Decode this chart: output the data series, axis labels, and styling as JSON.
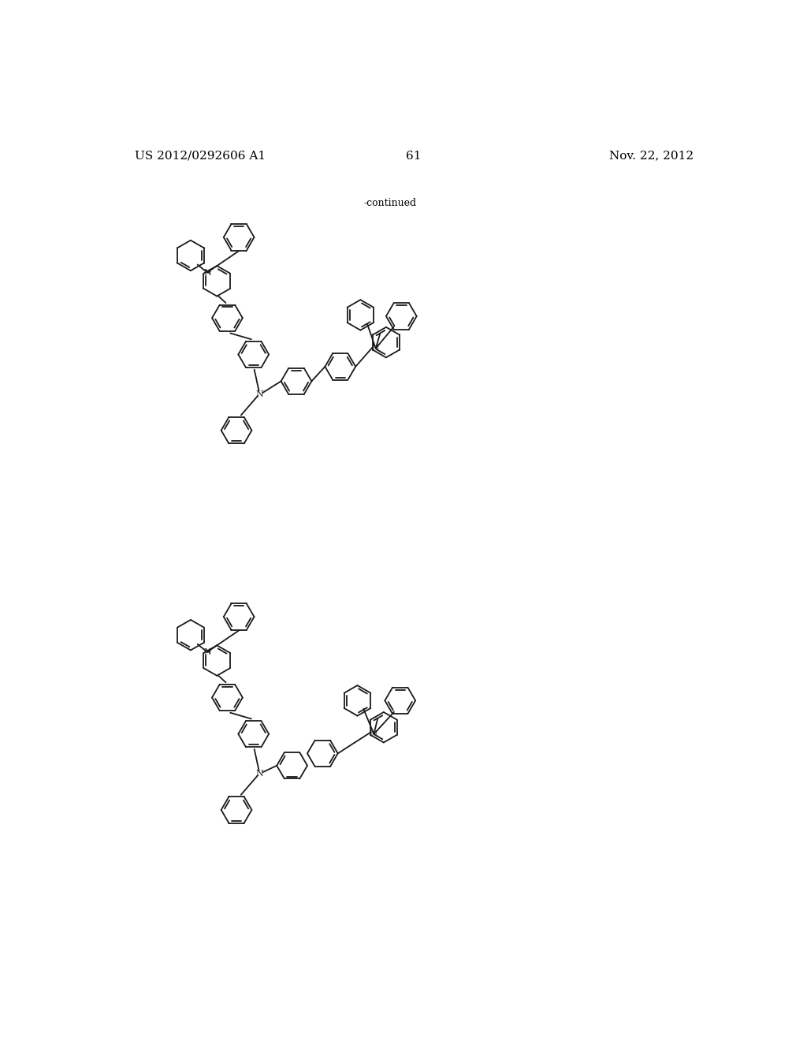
{
  "page_number": "61",
  "patent_number": "US 2012/0292606 A1",
  "date": "Nov. 22, 2012",
  "continued_label": "-continued",
  "background_color": "#ffffff",
  "line_color": "#1a1a1a",
  "text_color": "#000000",
  "font_size_header": 11,
  "font_size_page": 11,
  "font_size_continued": 9,
  "lw": 1.3
}
